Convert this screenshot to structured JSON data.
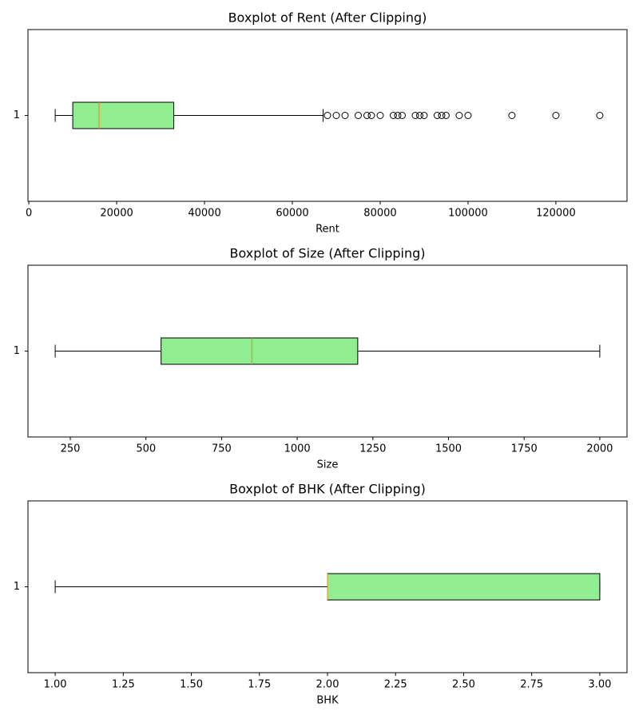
{
  "chart_data": [
    {
      "type": "boxplot",
      "title": "Boxplot of Rent (After Clipping)",
      "xlabel": "Rent",
      "categories": [
        "1"
      ],
      "whisker_low": 6000,
      "q1": 10000,
      "median": 16000,
      "q3": 33000,
      "whisker_high": 67000,
      "outliers": [
        68000,
        70000,
        72000,
        75000,
        77000,
        78000,
        80000,
        83000,
        84000,
        85000,
        88000,
        89000,
        90000,
        93000,
        94000,
        95000,
        98000,
        100000,
        110000,
        120000,
        130000
      ],
      "xlim": [
        -200,
        136200
      ],
      "xticks": [
        0,
        20000,
        40000,
        60000,
        80000,
        100000,
        120000
      ],
      "color": "#90ee90",
      "median_color": "#ff7f0e"
    },
    {
      "type": "boxplot",
      "title": "Boxplot of Size (After Clipping)",
      "xlabel": "Size",
      "categories": [
        "1"
      ],
      "whisker_low": 200,
      "q1": 550,
      "median": 850,
      "q3": 1200,
      "whisker_high": 2000,
      "outliers": [],
      "xlim": [
        110,
        2090
      ],
      "xticks": [
        250,
        500,
        750,
        1000,
        1250,
        1500,
        1750,
        2000
      ],
      "color": "#90ee90",
      "median_color": "#ff7f0e"
    },
    {
      "type": "boxplot",
      "title": "Boxplot of BHK (After Clipping)",
      "xlabel": "BHK",
      "categories": [
        "1"
      ],
      "whisker_low": 1,
      "q1": 2,
      "median": 2,
      "q3": 3,
      "whisker_high": 3,
      "outliers": [],
      "xlim": [
        0.9,
        3.1
      ],
      "xticks": [
        {
          "value": 1,
          "label": "1.00"
        },
        {
          "value": 1.25,
          "label": "1.25"
        },
        {
          "value": 1.5,
          "label": "1.50"
        },
        {
          "value": 1.75,
          "label": "1.75"
        },
        {
          "value": 2,
          "label": "2.00"
        },
        {
          "value": 2.25,
          "label": "2.25"
        },
        {
          "value": 2.5,
          "label": "2.50"
        },
        {
          "value": 2.75,
          "label": "2.75"
        },
        {
          "value": 3,
          "label": "3.00"
        }
      ],
      "color": "#90ee90",
      "median_color": "#ff7f0e"
    }
  ]
}
